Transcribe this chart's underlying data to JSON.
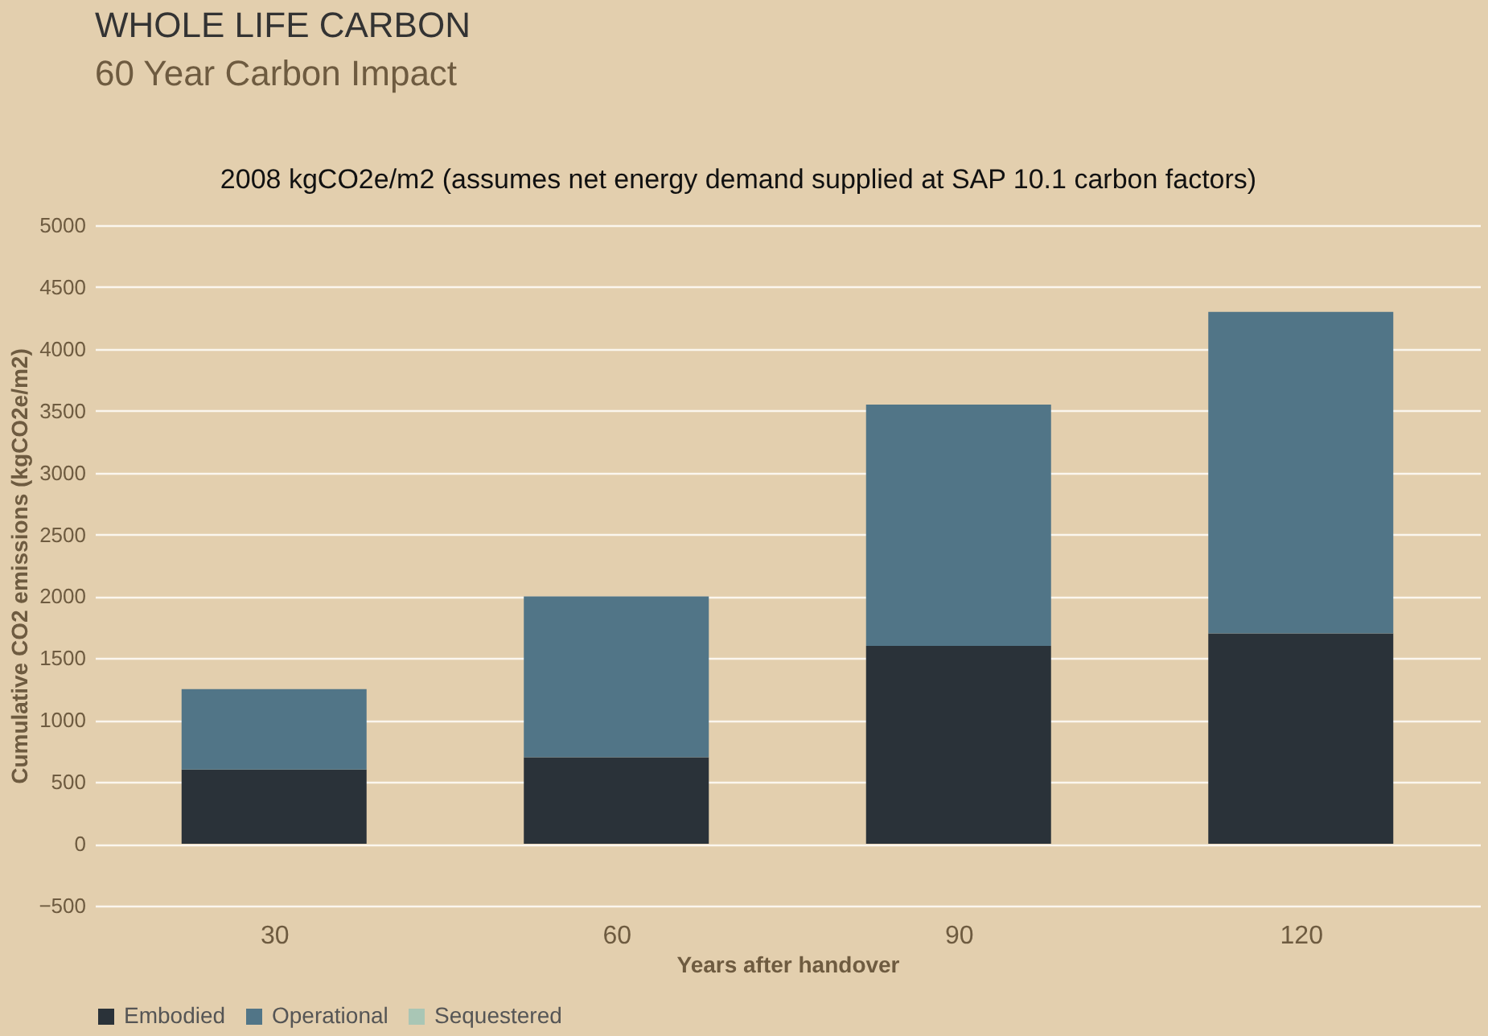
{
  "chart_data": {
    "type": "bar",
    "title": "WHOLE LIFE CARBON",
    "subtitle": "60 Year Carbon Impact",
    "annotations": [
      "2008 kgCO2e/m2 (assumes net energy demand supplied at SAP 10.1 carbon factors)"
    ],
    "xlabel": "Years after handover",
    "ylabel": "Cumulative CO2 emissions (kgCO2e/m2)",
    "categories": [
      "30",
      "60",
      "90",
      "120"
    ],
    "stacked": true,
    "series": [
      {
        "name": "Embodied",
        "color": "#2a3239",
        "values": [
          600,
          700,
          1600,
          1700
        ]
      },
      {
        "name": "Operational",
        "color": "#517587",
        "values": [
          650,
          1300,
          1950,
          2600
        ]
      },
      {
        "name": "Sequestered",
        "color": "#a9c6b5",
        "values": [
          null,
          null,
          null,
          null
        ]
      }
    ],
    "ylim": [
      -500,
      5000
    ],
    "yticks": [
      -500,
      0,
      500,
      1000,
      1500,
      2000,
      2500,
      3000,
      3500,
      4000,
      4500,
      5000
    ],
    "grid": "y",
    "legend": "bottom"
  }
}
